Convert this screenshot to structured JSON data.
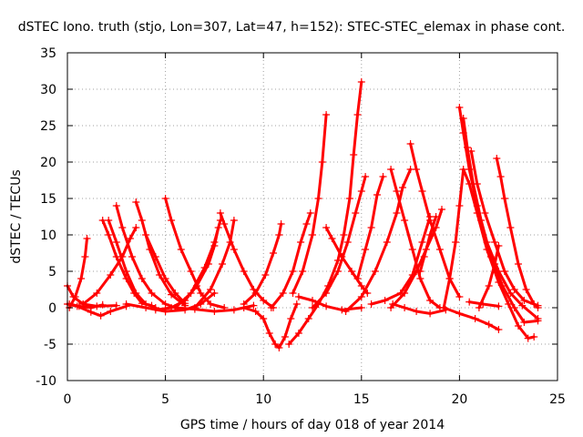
{
  "chart_data": {
    "type": "line",
    "title": "dSTEC Iono. truth (stjo, Lon=307, Lat=47, h=152): STEC-STEC_elemax in phase cont.",
    "xlabel": "GPS time / hours of day 018 of year 2014",
    "ylabel": "dSTEC  / TECUs",
    "xlim": [
      0,
      25
    ],
    "ylim": [
      -10,
      35
    ],
    "x_ticks": [
      0,
      5,
      10,
      15,
      20,
      25
    ],
    "y_ticks": [
      -10,
      -5,
      0,
      5,
      10,
      15,
      20,
      25,
      30,
      35
    ],
    "x_tick_labels": [
      "0",
      "5",
      "10",
      "15",
      "20",
      "25"
    ],
    "y_tick_labels": [
      "-10",
      "-5",
      "0",
      "5",
      "10",
      "15",
      "20",
      "25",
      "30",
      "35"
    ],
    "grid": true,
    "marker": "plus",
    "colors": {
      "series": "#ff0000"
    },
    "series": [
      {
        "points": [
          [
            0,
            3
          ],
          [
            0.3,
            1.5
          ],
          [
            0.8,
            0.5
          ],
          [
            1.5,
            0.2
          ],
          [
            2.5,
            0.3
          ]
        ]
      },
      {
        "points": [
          [
            0,
            0.5
          ],
          [
            0.5,
            0.2
          ],
          [
            1.2,
            -0.6
          ],
          [
            1.7,
            -1.1
          ],
          [
            2.2,
            -0.5
          ],
          [
            3,
            0.2
          ]
        ]
      },
      {
        "points": [
          [
            0.1,
            0
          ],
          [
            0.4,
            1.5
          ],
          [
            0.7,
            4
          ],
          [
            0.9,
            7
          ],
          [
            1.0,
            9.5
          ]
        ]
      },
      {
        "points": [
          [
            0.1,
            0.5
          ],
          [
            0.6,
            0.2
          ],
          [
            1.2,
            0
          ],
          [
            1.8,
            0.4
          ]
        ]
      },
      {
        "points": [
          [
            1.8,
            12
          ],
          [
            2.1,
            10
          ],
          [
            2.5,
            7
          ],
          [
            3,
            4
          ],
          [
            3.4,
            2
          ],
          [
            3.8,
            0.6
          ],
          [
            4.3,
            0.3
          ]
        ]
      },
      {
        "points": [
          [
            2.1,
            12
          ],
          [
            2.5,
            9
          ],
          [
            3,
            5
          ],
          [
            3.5,
            2
          ],
          [
            4,
            0.5
          ],
          [
            4.5,
            0
          ]
        ]
      },
      {
        "points": [
          [
            2.5,
            14
          ],
          [
            2.8,
            11
          ],
          [
            3.3,
            7
          ],
          [
            3.8,
            4
          ],
          [
            4.3,
            2
          ],
          [
            5,
            0.5
          ],
          [
            5.5,
            0
          ]
        ]
      },
      {
        "points": [
          [
            0.8,
            0.5
          ],
          [
            1.5,
            2
          ],
          [
            2.2,
            4.5
          ],
          [
            2.8,
            7
          ],
          [
            3.2,
            9.5
          ],
          [
            3.5,
            11
          ]
        ]
      },
      {
        "points": [
          [
            3.5,
            14.5
          ],
          [
            3.8,
            12
          ],
          [
            4.2,
            8
          ],
          [
            4.7,
            4.5
          ],
          [
            5.3,
            1.8
          ],
          [
            6,
            0.3
          ]
        ]
      },
      {
        "points": [
          [
            4.0,
            10
          ],
          [
            4.5,
            7
          ],
          [
            5,
            4
          ],
          [
            5.5,
            2
          ],
          [
            6,
            0.6
          ]
        ]
      },
      {
        "points": [
          [
            5.0,
            15
          ],
          [
            5.3,
            12
          ],
          [
            5.8,
            8
          ],
          [
            6.3,
            5
          ],
          [
            6.8,
            2
          ],
          [
            7.3,
            0.5
          ],
          [
            8,
            0
          ]
        ]
      },
      {
        "points": [
          [
            3,
            0.5
          ],
          [
            4,
            0
          ],
          [
            5,
            -0.5
          ],
          [
            6,
            -0.3
          ],
          [
            6.8,
            0.5
          ],
          [
            7.5,
            2
          ]
        ]
      },
      {
        "points": [
          [
            4.5,
            -0.3
          ],
          [
            5.3,
            0
          ],
          [
            6,
            1
          ],
          [
            6.6,
            3
          ],
          [
            7.2,
            6
          ],
          [
            7.5,
            8.5
          ],
          [
            7.7,
            11
          ]
        ]
      },
      {
        "points": [
          [
            5.5,
            0
          ],
          [
            6.3,
            2
          ],
          [
            7,
            5.5
          ],
          [
            7.5,
            9
          ],
          [
            7.8,
            12
          ]
        ]
      },
      {
        "points": [
          [
            6.5,
            0
          ],
          [
            7.3,
            2.5
          ],
          [
            7.9,
            6
          ],
          [
            8.3,
            9
          ],
          [
            8.5,
            12
          ]
        ]
      },
      {
        "points": [
          [
            7.8,
            13
          ],
          [
            8,
            11.5
          ],
          [
            8.5,
            8
          ],
          [
            9,
            5
          ],
          [
            9.5,
            2.5
          ],
          [
            10,
            1
          ],
          [
            10.5,
            0
          ]
        ]
      },
      {
        "points": [
          [
            5.5,
            0
          ],
          [
            6.5,
            -0.2
          ],
          [
            7.5,
            -0.5
          ],
          [
            8.5,
            -0.3
          ],
          [
            9.5,
            0.3
          ]
        ]
      },
      {
        "points": [
          [
            9.0,
            0
          ],
          [
            9.6,
            -0.5
          ],
          [
            10,
            -1.5
          ],
          [
            10.3,
            -3.5
          ],
          [
            10.6,
            -5
          ],
          [
            10.8,
            -5.5
          ],
          [
            11.1,
            -4
          ],
          [
            11.4,
            -1.5
          ],
          [
            11.7,
            0.5
          ]
        ]
      },
      {
        "points": [
          [
            9.0,
            0.5
          ],
          [
            9.6,
            2
          ],
          [
            10.1,
            4.5
          ],
          [
            10.5,
            7.5
          ],
          [
            10.8,
            10
          ],
          [
            10.9,
            11.5
          ]
        ]
      },
      {
        "points": [
          [
            10.4,
            0
          ],
          [
            11,
            2
          ],
          [
            11.5,
            5
          ],
          [
            11.9,
            9
          ],
          [
            12.2,
            11.5
          ],
          [
            12.4,
            13
          ]
        ]
      },
      {
        "points": [
          [
            11.5,
            2
          ],
          [
            12,
            5
          ],
          [
            12.5,
            10
          ],
          [
            12.8,
            15
          ],
          [
            13.0,
            20
          ],
          [
            13.2,
            26.5
          ]
        ]
      },
      {
        "points": [
          [
            11.3,
            -5
          ],
          [
            11.8,
            -3.5
          ],
          [
            12.3,
            -1.5
          ],
          [
            12.8,
            0.5
          ],
          [
            13.3,
            3
          ],
          [
            13.8,
            6.5
          ],
          [
            14.1,
            10
          ],
          [
            14.4,
            15
          ],
          [
            14.6,
            21
          ],
          [
            14.8,
            26.5
          ],
          [
            15.0,
            31
          ]
        ]
      },
      {
        "points": [
          [
            12.5,
            0
          ],
          [
            13.2,
            2
          ],
          [
            13.8,
            5
          ],
          [
            14.3,
            9
          ],
          [
            14.7,
            13
          ],
          [
            15.0,
            16
          ],
          [
            15.2,
            18
          ]
        ]
      },
      {
        "points": [
          [
            13.2,
            11
          ],
          [
            13.5,
            9.5
          ],
          [
            14,
            7
          ],
          [
            14.5,
            5
          ],
          [
            15,
            3
          ],
          [
            15.3,
            2
          ]
        ]
      },
      {
        "points": [
          [
            11.8,
            1.5
          ],
          [
            12.5,
            1
          ],
          [
            13.2,
            0.2
          ],
          [
            14,
            -0.3
          ],
          [
            15,
            0
          ]
        ]
      },
      {
        "points": [
          [
            14.8,
            4
          ],
          [
            15.2,
            8
          ],
          [
            15.5,
            11
          ],
          [
            15.8,
            15.5
          ],
          [
            16.1,
            18
          ]
        ]
      },
      {
        "points": [
          [
            14.2,
            -0.5
          ],
          [
            15,
            1.5
          ],
          [
            15.7,
            5
          ],
          [
            16.3,
            9
          ],
          [
            16.8,
            13
          ],
          [
            17.1,
            16.5
          ],
          [
            17.5,
            19
          ]
        ]
      },
      {
        "points": [
          [
            16.5,
            19
          ],
          [
            16.8,
            16
          ],
          [
            17.2,
            12
          ],
          [
            17.6,
            8
          ],
          [
            18,
            4
          ],
          [
            18.5,
            1
          ],
          [
            19,
            0
          ]
        ]
      },
      {
        "points": [
          [
            17.5,
            22.5
          ],
          [
            17.8,
            19
          ],
          [
            18.1,
            16
          ],
          [
            18.5,
            12
          ],
          [
            19,
            8
          ],
          [
            19.5,
            4
          ],
          [
            20,
            1.5
          ]
        ]
      },
      {
        "points": [
          [
            16.5,
            0
          ],
          [
            17.2,
            2
          ],
          [
            17.8,
            5
          ],
          [
            18.3,
            8
          ],
          [
            18.8,
            11
          ],
          [
            19.1,
            13.5
          ]
        ]
      },
      {
        "points": [
          [
            15.5,
            0.5
          ],
          [
            16.2,
            1
          ],
          [
            17,
            2
          ],
          [
            17.6,
            4.5
          ],
          [
            18.1,
            9
          ],
          [
            18.5,
            12.5
          ]
        ]
      },
      {
        "points": [
          [
            18.8,
            12.5
          ],
          [
            18.5,
            10
          ],
          [
            18.2,
            7
          ],
          [
            18,
            5
          ]
        ]
      },
      {
        "points": [
          [
            16.6,
            0.5
          ],
          [
            17.2,
            0
          ],
          [
            17.8,
            -0.5
          ],
          [
            18.5,
            -0.8
          ],
          [
            19.3,
            -0.3
          ]
        ]
      },
      {
        "points": [
          [
            20.0,
            27.5
          ],
          [
            20.2,
            24
          ],
          [
            20.5,
            19
          ],
          [
            20.9,
            14
          ],
          [
            21.4,
            9
          ],
          [
            22,
            5
          ],
          [
            22.6,
            2
          ],
          [
            23.2,
            0.3
          ],
          [
            24,
            -1.5
          ]
        ]
      },
      {
        "points": [
          [
            20.2,
            26
          ],
          [
            20.4,
            22
          ],
          [
            20.7,
            17
          ],
          [
            21.1,
            12
          ],
          [
            21.6,
            7
          ],
          [
            22.2,
            3
          ],
          [
            22.8,
            0
          ],
          [
            23.3,
            -2
          ],
          [
            24,
            -1.8
          ]
        ]
      },
      {
        "points": [
          [
            20.6,
            21.5
          ],
          [
            20.9,
            17
          ],
          [
            21.3,
            13
          ],
          [
            21.8,
            9
          ],
          [
            22.3,
            5
          ],
          [
            22.8,
            2.5
          ],
          [
            23.3,
            1
          ],
          [
            24,
            0.3
          ]
        ]
      },
      {
        "points": [
          [
            19.2,
            0
          ],
          [
            19.5,
            4
          ],
          [
            19.8,
            9
          ],
          [
            20.0,
            14
          ],
          [
            20.2,
            19
          ],
          [
            20.5,
            17
          ],
          [
            20.9,
            13
          ],
          [
            21.4,
            8
          ],
          [
            22,
            3.5
          ],
          [
            22.5,
            0.5
          ],
          [
            23,
            -2.5
          ],
          [
            23.5,
            -4.2
          ],
          [
            23.8,
            -4
          ]
        ]
      },
      {
        "points": [
          [
            21.9,
            20.5
          ],
          [
            22.1,
            18
          ],
          [
            22.3,
            15
          ],
          [
            22.6,
            11
          ],
          [
            23,
            6
          ],
          [
            23.4,
            2.5
          ],
          [
            23.8,
            0.5
          ],
          [
            24,
            0
          ]
        ]
      },
      {
        "points": [
          [
            19.2,
            0
          ],
          [
            20,
            -0.8
          ],
          [
            20.8,
            -1.5
          ],
          [
            21.5,
            -2.3
          ],
          [
            22,
            -3
          ]
        ]
      },
      {
        "points": [
          [
            21,
            0
          ],
          [
            21.5,
            3
          ],
          [
            21.8,
            6
          ],
          [
            22.0,
            8.5
          ]
        ]
      },
      {
        "points": [
          [
            20.5,
            0.8
          ],
          [
            21.2,
            0.5
          ],
          [
            22,
            0.2
          ]
        ]
      }
    ]
  }
}
